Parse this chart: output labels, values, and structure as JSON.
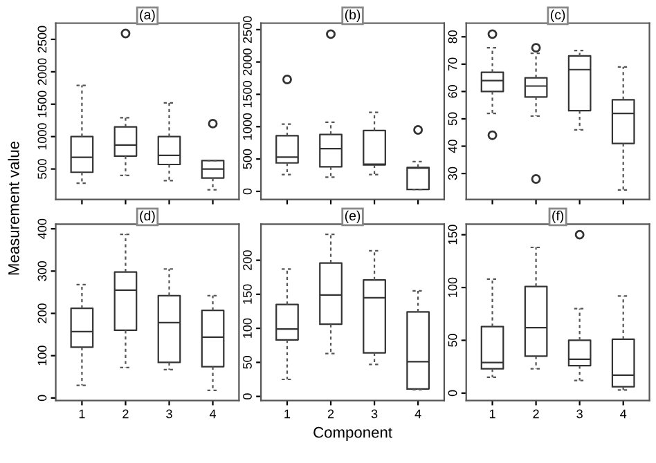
{
  "chart_data": [
    {
      "type": "box",
      "title": "(a)",
      "ylabel": "Measurement value",
      "categories": [
        "1",
        "2",
        "3",
        "4"
      ],
      "ylim": [
        30,
        2750
      ],
      "yticks": [
        500,
        1000,
        1500,
        2000,
        2500
      ],
      "tick_labels": "y",
      "grid": false,
      "boxes": [
        {
          "low": 280,
          "q1": 450,
          "median": 680,
          "q3": 1000,
          "high": 1790
        },
        {
          "low": 400,
          "q1": 700,
          "median": 870,
          "q3": 1150,
          "high": 1290,
          "outliers": [
            2590
          ]
        },
        {
          "low": 320,
          "q1": 570,
          "median": 710,
          "q3": 1000,
          "high": 1520
        },
        {
          "low": 180,
          "q1": 360,
          "median": 500,
          "q3": 630,
          "high": 630,
          "outliers": [
            1200
          ]
        }
      ]
    },
    {
      "type": "box",
      "title": "(b)",
      "categories": [
        "1",
        "2",
        "3",
        "4"
      ],
      "ylim": [
        -125,
        2600
      ],
      "yticks": [
        0,
        500,
        1000,
        1500,
        2000,
        2500
      ],
      "tick_labels": "y",
      "grid": false,
      "boxes": [
        {
          "low": 260,
          "q1": 440,
          "median": 530,
          "q3": 860,
          "high": 1040,
          "outliers": [
            1730
          ]
        },
        {
          "low": 220,
          "q1": 380,
          "median": 660,
          "q3": 880,
          "high": 1070,
          "outliers": [
            2430
          ]
        },
        {
          "low": 260,
          "q1": 410,
          "median": 420,
          "q3": 940,
          "high": 1220
        },
        {
          "low": 30,
          "q1": 30,
          "median": 360,
          "q3": 370,
          "high": 460,
          "outliers": [
            950
          ]
        }
      ]
    },
    {
      "type": "box",
      "title": "(c)",
      "categories": [
        "1",
        "2",
        "3",
        "4"
      ],
      "ylim": [
        20.5,
        85
      ],
      "yticks": [
        30,
        40,
        50,
        60,
        70,
        80
      ],
      "tick_labels": "y",
      "grid": false,
      "boxes": [
        {
          "low": 52,
          "q1": 60,
          "median": 64,
          "q3": 67,
          "high": 76,
          "outliers": [
            81,
            44
          ]
        },
        {
          "low": 51,
          "q1": 58,
          "median": 62,
          "q3": 65,
          "high": 74,
          "outliers": [
            76,
            28
          ]
        },
        {
          "low": 46,
          "q1": 53,
          "median": 68,
          "q3": 73,
          "high": 75
        },
        {
          "low": 24,
          "q1": 41,
          "median": 52,
          "q3": 57,
          "high": 69
        }
      ]
    },
    {
      "type": "box",
      "title": "(d)",
      "categories": [
        "1",
        "2",
        "3",
        "4"
      ],
      "ylim": [
        -6,
        411
      ],
      "yticks": [
        0,
        100,
        200,
        300,
        400
      ],
      "grid": false,
      "boxes": [
        {
          "low": 30,
          "q1": 120,
          "median": 157,
          "q3": 212,
          "high": 268
        },
        {
          "low": 72,
          "q1": 160,
          "median": 255,
          "q3": 298,
          "high": 387
        },
        {
          "low": 67,
          "q1": 84,
          "median": 178,
          "q3": 242,
          "high": 305
        },
        {
          "low": 18,
          "q1": 74,
          "median": 144,
          "q3": 207,
          "high": 242
        }
      ]
    },
    {
      "type": "box",
      "title": "(e)",
      "xlabel": "Component",
      "categories": [
        "1",
        "2",
        "3",
        "4"
      ],
      "ylim": [
        -6,
        253
      ],
      "yticks": [
        0,
        50,
        100,
        150,
        200
      ],
      "grid": false,
      "boxes": [
        {
          "low": 25,
          "q1": 83,
          "median": 99,
          "q3": 135,
          "high": 187
        },
        {
          "low": 63,
          "q1": 106,
          "median": 149,
          "q3": 196,
          "high": 238
        },
        {
          "low": 47,
          "q1": 64,
          "median": 145,
          "q3": 171,
          "high": 214
        },
        {
          "low": 10,
          "q1": 11,
          "median": 51,
          "q3": 124,
          "high": 155
        }
      ]
    },
    {
      "type": "box",
      "title": "(f)",
      "categories": [
        "1",
        "2",
        "3",
        "4"
      ],
      "ylim": [
        -7,
        160
      ],
      "yticks": [
        0,
        50,
        100,
        150
      ],
      "grid": false,
      "boxes": [
        {
          "low": 15,
          "q1": 23,
          "median": 29,
          "q3": 63,
          "high": 108
        },
        {
          "low": 23,
          "q1": 35,
          "median": 62,
          "q3": 101,
          "high": 138
        },
        {
          "low": 12,
          "q1": 26,
          "median": 32,
          "q3": 50,
          "high": 80,
          "outliers": [
            150
          ]
        },
        {
          "low": 3,
          "q1": 6,
          "median": 17,
          "q3": 51,
          "high": 92
        }
      ]
    }
  ]
}
